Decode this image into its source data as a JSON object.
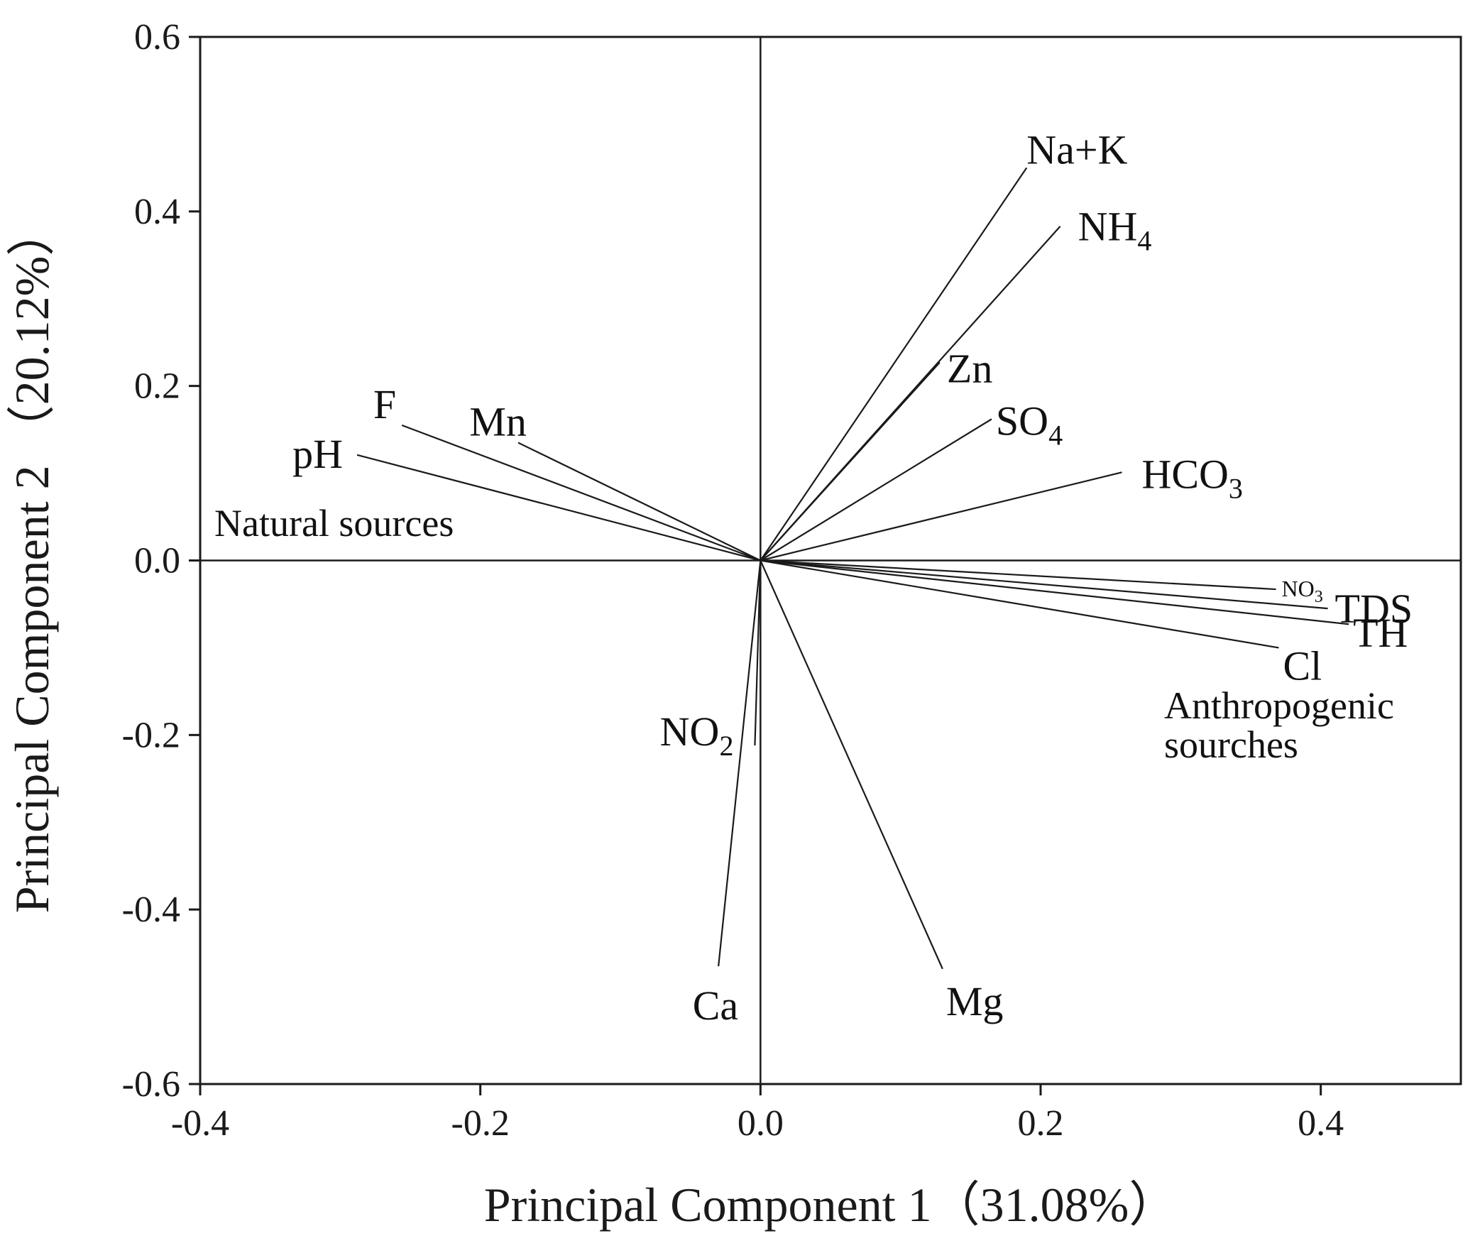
{
  "chart_data": {
    "type": "scatter",
    "subtype": "biplot-loadings",
    "xlabel": "Principal Component 1（31.08%）",
    "ylabel": "Principal Component 2 （20.12%）",
    "xlim": [
      -0.4,
      0.5
    ],
    "ylim": [
      -0.6,
      0.6
    ],
    "xticks": [
      -0.4,
      -0.2,
      0.0,
      0.2,
      0.4
    ],
    "xtick_labels": [
      "-0.4",
      "-0.2",
      "0.0",
      "0.2",
      "0.4"
    ],
    "yticks": [
      -0.6,
      -0.4,
      -0.2,
      0.0,
      0.2,
      0.4,
      0.6
    ],
    "ytick_labels": [
      "-0.6",
      "-0.4",
      "-0.2",
      "0.0",
      "0.2",
      "0.4",
      "0.6"
    ],
    "grid": false,
    "legend": "none",
    "line_color": "#1a1a1a",
    "vectors": [
      {
        "name": "Na+K",
        "main": "Na+K",
        "sub": "",
        "x": 0.19,
        "y": 0.45
      },
      {
        "name": "NH4",
        "main": "NH",
        "sub": "4",
        "x": 0.214,
        "y": 0.383
      },
      {
        "name": "Zn",
        "main": "Zn",
        "sub": "",
        "x": 0.128,
        "y": 0.227
      },
      {
        "name": "SO4",
        "main": "SO",
        "sub": "4",
        "x": 0.165,
        "y": 0.162
      },
      {
        "name": "HCO3",
        "main": "HCO",
        "sub": "3",
        "x": 0.258,
        "y": 0.101
      },
      {
        "name": "F",
        "main": "F",
        "sub": "",
        "x": -0.256,
        "y": 0.155
      },
      {
        "name": "Mn",
        "main": "Mn",
        "sub": "",
        "x": -0.173,
        "y": 0.135
      },
      {
        "name": "pH",
        "main": "pH",
        "sub": "",
        "x": -0.288,
        "y": 0.121
      },
      {
        "name": "NO3",
        "main": "NO",
        "sub": "3",
        "x": 0.368,
        "y": -0.033
      },
      {
        "name": "TDS",
        "main": "TDS",
        "sub": "",
        "x": 0.405,
        "y": -0.055
      },
      {
        "name": "TH",
        "main": "TH",
        "sub": "",
        "x": 0.42,
        "y": -0.073
      },
      {
        "name": "Cl",
        "main": "Cl",
        "sub": "",
        "x": 0.37,
        "y": -0.1
      },
      {
        "name": "NO2",
        "main": "NO",
        "sub": "2",
        "x": -0.004,
        "y": -0.212
      },
      {
        "name": "Ca",
        "main": "Ca",
        "sub": "",
        "x": -0.03,
        "y": -0.465
      },
      {
        "name": "Mg",
        "main": "Mg",
        "sub": "",
        "x": 0.13,
        "y": -0.468
      }
    ],
    "annotations": [
      {
        "text": "Natural sources"
      },
      {
        "text": "Anthropogenic"
      },
      {
        "text": "sourches"
      }
    ]
  }
}
